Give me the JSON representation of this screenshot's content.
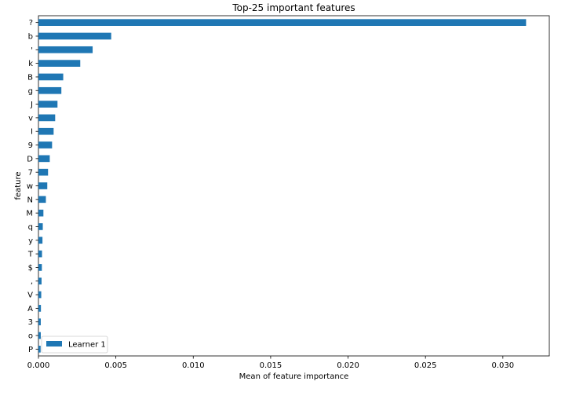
{
  "chart_data": {
    "type": "bar",
    "orientation": "horizontal",
    "title": "Top-25 important features",
    "xlabel": "Mean of feature importance",
    "ylabel": "feature",
    "xlim": [
      0,
      0.033
    ],
    "xticks": [
      "0.000",
      "0.005",
      "0.010",
      "0.015",
      "0.020",
      "0.025",
      "0.030"
    ],
    "xtick_values": [
      0,
      0.005,
      0.01,
      0.015,
      0.02,
      0.025,
      0.03
    ],
    "grid": false,
    "legend_position": "lower-left",
    "bar_color": "#1f77b4",
    "categories": [
      "?",
      "b",
      "'",
      "k",
      "B",
      "g",
      "J",
      "v",
      "I",
      "9",
      "D",
      "7",
      "w",
      "N",
      "M",
      "q",
      "y",
      "T",
      "$",
      ",",
      "V",
      "A",
      "3",
      "o",
      "P"
    ],
    "series": [
      {
        "name": "Learner 1",
        "values": [
          0.0315,
          0.0047,
          0.0035,
          0.0027,
          0.0016,
          0.00148,
          0.00123,
          0.00108,
          0.00098,
          0.00088,
          0.00073,
          0.00062,
          0.00057,
          0.00048,
          0.00032,
          0.00028,
          0.00026,
          0.00023,
          0.00022,
          0.0002,
          0.00018,
          0.00016,
          0.00015,
          0.00015,
          0.00014
        ]
      }
    ]
  }
}
